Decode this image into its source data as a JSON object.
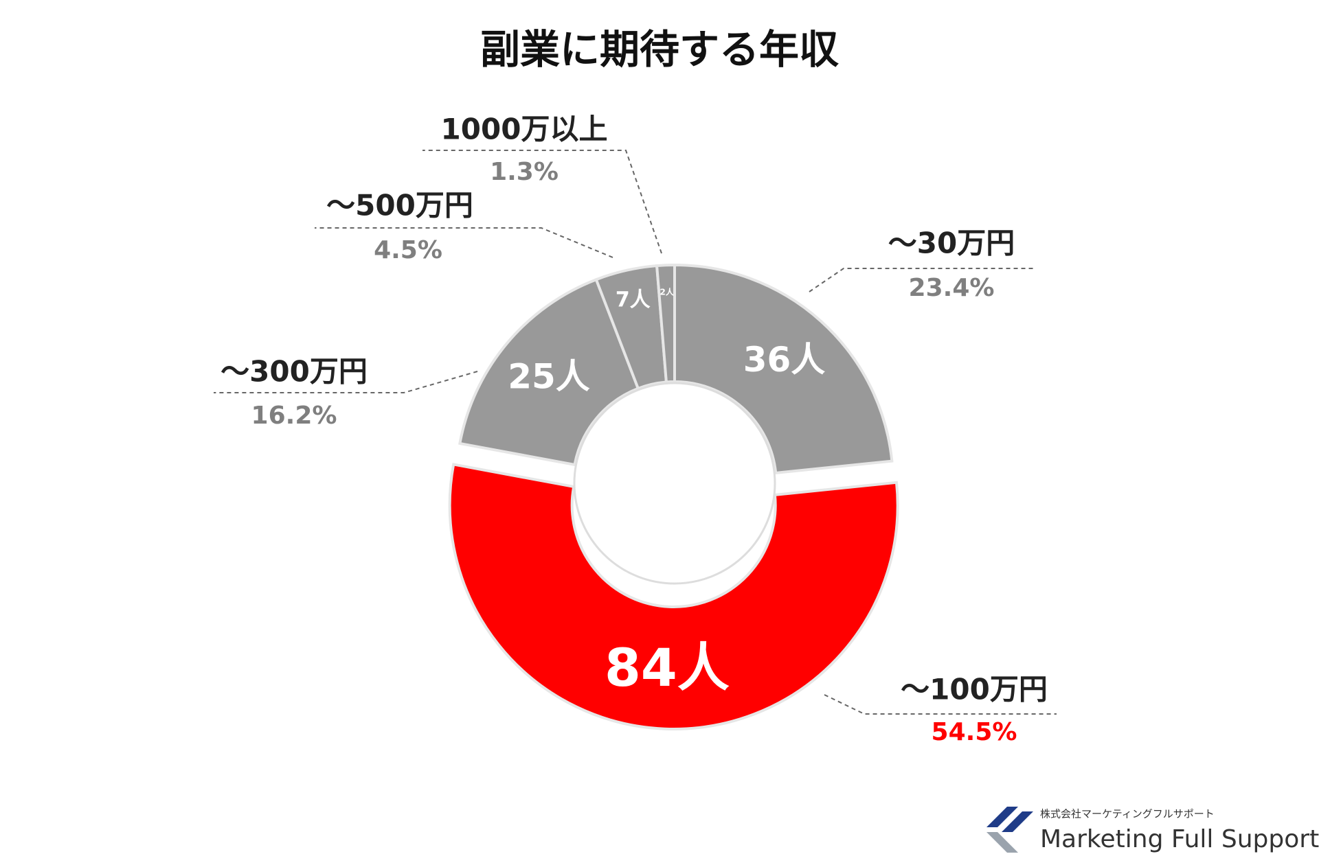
{
  "chart_data": {
    "type": "donut",
    "title": "副業に期待する年収",
    "categories": [
      "～30万円",
      "～100万円",
      "～300万円",
      "～500万円",
      "1000万以上"
    ],
    "values": [
      36,
      84,
      25,
      7,
      2
    ],
    "value_labels": [
      "36人",
      "84人",
      "25人",
      "7人",
      "2人"
    ],
    "percentages": [
      23.4,
      54.5,
      16.2,
      4.5,
      1.3
    ],
    "percentage_labels": [
      "23.4%",
      "54.5%",
      "16.2%",
      "4.5%",
      "1.3%"
    ],
    "colors": [
      "#999999",
      "#ff0000",
      "#999999",
      "#999999",
      "#999999"
    ],
    "exploded": 1
  },
  "footer": {
    "company": "株式会社マーケティングフルサポート",
    "brand": "Marketing Full Support"
  }
}
